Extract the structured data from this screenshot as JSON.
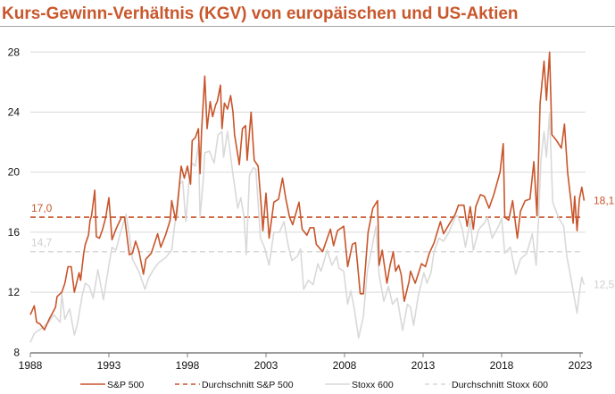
{
  "chart_data": {
    "type": "line",
    "title": "Kurs-Gewinn-Verhältnis (KGV) von europäischen und US-Aktien",
    "xlabel": "",
    "ylabel": "",
    "xlim": [
      1988,
      2023
    ],
    "ylim": [
      8,
      28
    ],
    "x_ticks": [
      "1988",
      "1993",
      "1998",
      "2003",
      "2008",
      "2013",
      "2018",
      "2023"
    ],
    "y_ticks": [
      "8",
      "12",
      "16",
      "20",
      "24",
      "28"
    ],
    "grid": "horizontal",
    "legend_placement": "bottom",
    "colors": {
      "sp500": "#c8552b",
      "stoxx600": "#d9d9d9",
      "avg_sp500": "#c8552b",
      "avg_stoxx600": "#d9d9d9"
    },
    "series": [
      {
        "name": "S&P 500",
        "style": "solid",
        "points": [
          [
            1988.0,
            10.5
          ],
          [
            1988.25,
            11.1
          ],
          [
            1988.4,
            10.0
          ],
          [
            1988.6,
            9.9
          ],
          [
            1988.9,
            9.5
          ],
          [
            1989.2,
            10.2
          ],
          [
            1989.6,
            11.0
          ],
          [
            1989.7,
            11.7
          ],
          [
            1990.0,
            12.0
          ],
          [
            1990.2,
            12.6
          ],
          [
            1990.4,
            13.7
          ],
          [
            1990.6,
            13.7
          ],
          [
            1990.8,
            12.0
          ],
          [
            1991.1,
            13.3
          ],
          [
            1991.2,
            12.8
          ],
          [
            1991.4,
            14.6
          ],
          [
            1991.5,
            15.2
          ],
          [
            1991.7,
            15.8
          ],
          [
            1991.8,
            16.8
          ],
          [
            1991.9,
            17.1
          ],
          [
            1992.1,
            18.8
          ],
          [
            1992.2,
            15.7
          ],
          [
            1992.4,
            15.6
          ],
          [
            1992.6,
            16.2
          ],
          [
            1992.8,
            17.0
          ],
          [
            1993.0,
            18.3
          ],
          [
            1993.2,
            15.5
          ],
          [
            1993.45,
            16.2
          ],
          [
            1993.8,
            17.0
          ],
          [
            1994.0,
            17.0
          ],
          [
            1994.3,
            14.5
          ],
          [
            1994.5,
            14.6
          ],
          [
            1994.7,
            15.4
          ],
          [
            1994.9,
            14.8
          ],
          [
            1995.2,
            13.2
          ],
          [
            1995.35,
            14.2
          ],
          [
            1995.7,
            14.6
          ],
          [
            1996.1,
            15.9
          ],
          [
            1996.3,
            15.0
          ],
          [
            1996.6,
            15.8
          ],
          [
            1996.9,
            16.8
          ],
          [
            1997.0,
            18.1
          ],
          [
            1997.25,
            16.8
          ],
          [
            1997.4,
            18.2
          ],
          [
            1997.6,
            20.4
          ],
          [
            1997.8,
            19.6
          ],
          [
            1998.0,
            20.4
          ],
          [
            1998.2,
            19.2
          ],
          [
            1998.3,
            22.1
          ],
          [
            1998.5,
            22.3
          ],
          [
            1998.7,
            22.9
          ],
          [
            1998.8,
            19.9
          ],
          [
            1998.9,
            22.7
          ],
          [
            1999.1,
            26.4
          ],
          [
            1999.25,
            22.9
          ],
          [
            1999.45,
            24.7
          ],
          [
            1999.6,
            23.7
          ],
          [
            1999.8,
            24.5
          ],
          [
            1999.9,
            24.7
          ],
          [
            2000.1,
            25.8
          ],
          [
            2000.2,
            22.9
          ],
          [
            2000.35,
            24.6
          ],
          [
            2000.55,
            24.2
          ],
          [
            2000.75,
            25.1
          ],
          [
            2000.9,
            24.0
          ],
          [
            2001.0,
            22.5
          ],
          [
            2001.3,
            20.5
          ],
          [
            2001.5,
            22.9
          ],
          [
            2001.7,
            23.1
          ],
          [
            2001.8,
            20.8
          ],
          [
            2002.05,
            24.0
          ],
          [
            2002.25,
            20.8
          ],
          [
            2002.5,
            20.4
          ],
          [
            2002.7,
            17.7
          ],
          [
            2002.8,
            16.1
          ],
          [
            2003.0,
            18.6
          ],
          [
            2003.2,
            15.6
          ],
          [
            2003.5,
            18.0
          ],
          [
            2003.8,
            18.2
          ],
          [
            2004.05,
            19.6
          ],
          [
            2004.25,
            18.3
          ],
          [
            2004.5,
            17.0
          ],
          [
            2004.7,
            16.5
          ],
          [
            2005.1,
            18.0
          ],
          [
            2005.3,
            16.2
          ],
          [
            2005.6,
            15.8
          ],
          [
            2005.8,
            16.3
          ],
          [
            2006.05,
            16.3
          ],
          [
            2006.2,
            15.2
          ],
          [
            2006.6,
            14.7
          ],
          [
            2007.1,
            16.2
          ],
          [
            2007.3,
            15.1
          ],
          [
            2007.55,
            16.1
          ],
          [
            2007.95,
            16.4
          ],
          [
            2008.2,
            13.7
          ],
          [
            2008.5,
            15.2
          ],
          [
            2008.7,
            15.3
          ],
          [
            2009.0,
            11.9
          ],
          [
            2009.2,
            11.9
          ],
          [
            2009.5,
            16.0
          ],
          [
            2009.8,
            17.6
          ],
          [
            2010.1,
            18.1
          ],
          [
            2010.2,
            13.8
          ],
          [
            2010.4,
            14.8
          ],
          [
            2010.7,
            12.6
          ],
          [
            2010.9,
            13.8
          ],
          [
            2011.1,
            14.7
          ],
          [
            2011.25,
            13.4
          ],
          [
            2011.45,
            13.8
          ],
          [
            2011.6,
            13.2
          ],
          [
            2011.8,
            11.4
          ],
          [
            2012.1,
            12.7
          ],
          [
            2012.2,
            13.4
          ],
          [
            2012.5,
            12.6
          ],
          [
            2012.9,
            13.9
          ],
          [
            2013.15,
            13.7
          ],
          [
            2013.4,
            14.6
          ],
          [
            2013.7,
            15.3
          ],
          [
            2014.1,
            16.7
          ],
          [
            2014.3,
            15.9
          ],
          [
            2014.7,
            16.6
          ],
          [
            2015.05,
            17.2
          ],
          [
            2015.25,
            17.8
          ],
          [
            2015.6,
            17.8
          ],
          [
            2015.8,
            16.4
          ],
          [
            2016.0,
            17.7
          ],
          [
            2016.2,
            16.2
          ],
          [
            2016.35,
            17.7
          ],
          [
            2016.65,
            18.5
          ],
          [
            2016.9,
            18.4
          ],
          [
            2017.2,
            17.6
          ],
          [
            2017.5,
            18.5
          ],
          [
            2017.9,
            20.0
          ],
          [
            2018.1,
            21.9
          ],
          [
            2018.2,
            17.0
          ],
          [
            2018.45,
            16.8
          ],
          [
            2018.7,
            18.1
          ],
          [
            2019.0,
            15.6
          ],
          [
            2019.2,
            17.4
          ],
          [
            2019.5,
            18.1
          ],
          [
            2019.8,
            18.2
          ],
          [
            2020.05,
            20.7
          ],
          [
            2020.25,
            17.1
          ],
          [
            2020.45,
            24.6
          ],
          [
            2020.7,
            27.4
          ],
          [
            2020.85,
            24.8
          ],
          [
            2021.05,
            28.0
          ],
          [
            2021.2,
            22.5
          ],
          [
            2021.5,
            22.1
          ],
          [
            2021.8,
            21.6
          ],
          [
            2022.0,
            23.2
          ],
          [
            2022.2,
            20.0
          ],
          [
            2022.4,
            18.2
          ],
          [
            2022.55,
            16.6
          ],
          [
            2022.65,
            18.4
          ],
          [
            2022.8,
            16.1
          ],
          [
            2022.95,
            18.2
          ],
          [
            2023.1,
            19.0
          ],
          [
            2023.25,
            18.1
          ]
        ]
      },
      {
        "name": "Durchschnitt S&P 500",
        "style": "dashed",
        "value": 17.0,
        "label": "17,0"
      },
      {
        "name": "Stoxx 600",
        "style": "solid",
        "points": [
          [
            1988.0,
            8.65
          ],
          [
            1988.25,
            9.25
          ],
          [
            1988.5,
            9.45
          ],
          [
            1988.8,
            9.65
          ],
          [
            1989.2,
            10.05
          ],
          [
            1989.5,
            10.5
          ],
          [
            1989.9,
            10.0
          ],
          [
            1990.0,
            11.9
          ],
          [
            1990.2,
            10.2
          ],
          [
            1990.5,
            10.9
          ],
          [
            1990.8,
            9.15
          ],
          [
            1991.0,
            9.9
          ],
          [
            1991.3,
            11.8
          ],
          [
            1991.5,
            12.6
          ],
          [
            1991.75,
            12.4
          ],
          [
            1992.0,
            11.6
          ],
          [
            1992.3,
            13.5
          ],
          [
            1992.65,
            11.5
          ],
          [
            1993.0,
            13.8
          ],
          [
            1993.2,
            15.0
          ],
          [
            1993.45,
            14.8
          ],
          [
            1993.8,
            16.2
          ],
          [
            1994.1,
            17.2
          ],
          [
            1994.3,
            15.8
          ],
          [
            1994.5,
            14.2
          ],
          [
            1994.9,
            13.4
          ],
          [
            1995.3,
            12.2
          ],
          [
            1995.55,
            13.0
          ],
          [
            1995.9,
            13.6
          ],
          [
            1996.2,
            14.0
          ],
          [
            1996.6,
            14.3
          ],
          [
            1997.0,
            14.8
          ],
          [
            1997.2,
            16.6
          ],
          [
            1997.35,
            17.1
          ],
          [
            1997.5,
            19.2
          ],
          [
            1997.7,
            19.4
          ],
          [
            1997.9,
            16.7
          ],
          [
            1998.1,
            19.4
          ],
          [
            1998.3,
            20.6
          ],
          [
            1998.5,
            20.4
          ],
          [
            1998.7,
            21.9
          ],
          [
            1998.8,
            17.0
          ],
          [
            1999.0,
            19.4
          ],
          [
            1999.1,
            21.3
          ],
          [
            1999.4,
            21.4
          ],
          [
            1999.7,
            20.6
          ],
          [
            1999.95,
            22.5
          ],
          [
            2000.2,
            22.7
          ],
          [
            2000.3,
            21.0
          ],
          [
            2000.55,
            22.7
          ],
          [
            2000.85,
            20.2
          ],
          [
            2001.2,
            17.6
          ],
          [
            2001.4,
            18.3
          ],
          [
            2001.6,
            17.0
          ],
          [
            2001.75,
            14.5
          ],
          [
            2001.95,
            19.8
          ],
          [
            2002.2,
            20.3
          ],
          [
            2002.35,
            20.2
          ],
          [
            2002.65,
            15.6
          ],
          [
            2002.9,
            15.0
          ],
          [
            2003.2,
            13.8
          ],
          [
            2003.5,
            16.0
          ],
          [
            2003.85,
            16.0
          ],
          [
            2004.15,
            16.7
          ],
          [
            2004.4,
            15.2
          ],
          [
            2004.65,
            14.1
          ],
          [
            2005.0,
            14.4
          ],
          [
            2005.2,
            14.9
          ],
          [
            2005.4,
            12.2
          ],
          [
            2005.7,
            12.8
          ],
          [
            2006.0,
            12.5
          ],
          [
            2006.3,
            13.9
          ],
          [
            2006.5,
            13.4
          ],
          [
            2006.9,
            14.8
          ],
          [
            2007.2,
            13.8
          ],
          [
            2007.5,
            14.4
          ],
          [
            2007.65,
            13.6
          ],
          [
            2007.95,
            13.4
          ],
          [
            2008.2,
            11.2
          ],
          [
            2008.4,
            12.1
          ],
          [
            2008.6,
            11.0
          ],
          [
            2008.9,
            8.95
          ],
          [
            2009.2,
            10.4
          ],
          [
            2009.45,
            13.4
          ],
          [
            2009.75,
            15.0
          ],
          [
            2010.0,
            16.4
          ],
          [
            2010.2,
            13.2
          ],
          [
            2010.5,
            11.4
          ],
          [
            2010.8,
            12.4
          ],
          [
            2011.05,
            11.2
          ],
          [
            2011.35,
            11.6
          ],
          [
            2011.7,
            9.45
          ],
          [
            2012.0,
            11.2
          ],
          [
            2012.2,
            11.0
          ],
          [
            2012.4,
            9.8
          ],
          [
            2012.7,
            11.8
          ],
          [
            2013.05,
            13.3
          ],
          [
            2013.25,
            12.6
          ],
          [
            2013.5,
            13.3
          ],
          [
            2013.7,
            14.7
          ],
          [
            2014.0,
            15.6
          ],
          [
            2014.3,
            15.4
          ],
          [
            2014.65,
            16.0
          ],
          [
            2015.05,
            17.0
          ],
          [
            2015.2,
            17.1
          ],
          [
            2015.5,
            16.2
          ],
          [
            2015.7,
            15.0
          ],
          [
            2016.0,
            16.8
          ],
          [
            2016.2,
            14.8
          ],
          [
            2016.55,
            16.2
          ],
          [
            2016.9,
            16.6
          ],
          [
            2017.1,
            17.0
          ],
          [
            2017.4,
            15.6
          ],
          [
            2017.8,
            16.4
          ],
          [
            2018.0,
            16.9
          ],
          [
            2018.2,
            14.6
          ],
          [
            2018.55,
            15.0
          ],
          [
            2018.9,
            13.2
          ],
          [
            2019.2,
            14.2
          ],
          [
            2019.6,
            14.6
          ],
          [
            2019.95,
            15.9
          ],
          [
            2020.2,
            13.8
          ],
          [
            2020.35,
            17.0
          ],
          [
            2020.5,
            20.8
          ],
          [
            2020.7,
            22.7
          ],
          [
            2020.85,
            21.0
          ],
          [
            2021.05,
            23.9
          ],
          [
            2021.25,
            18.0
          ],
          [
            2021.65,
            16.9
          ],
          [
            2021.95,
            16.4
          ],
          [
            2022.15,
            14.4
          ],
          [
            2022.4,
            13.0
          ],
          [
            2022.6,
            11.8
          ],
          [
            2022.8,
            10.6
          ],
          [
            2022.95,
            12.0
          ],
          [
            2023.1,
            13.0
          ],
          [
            2023.25,
            12.5
          ]
        ]
      },
      {
        "name": "Durchschnitt Stoxx 600",
        "style": "dashed",
        "value": 14.7,
        "label": "14,7"
      }
    ],
    "annotations": {
      "sp500_last": "18,1",
      "stoxx600_last": "12,5"
    },
    "legend": [
      "S&P 500",
      "Durchschnitt S&P 500",
      "Stoxx 600",
      "Durchschnitt Stoxx 600"
    ]
  }
}
